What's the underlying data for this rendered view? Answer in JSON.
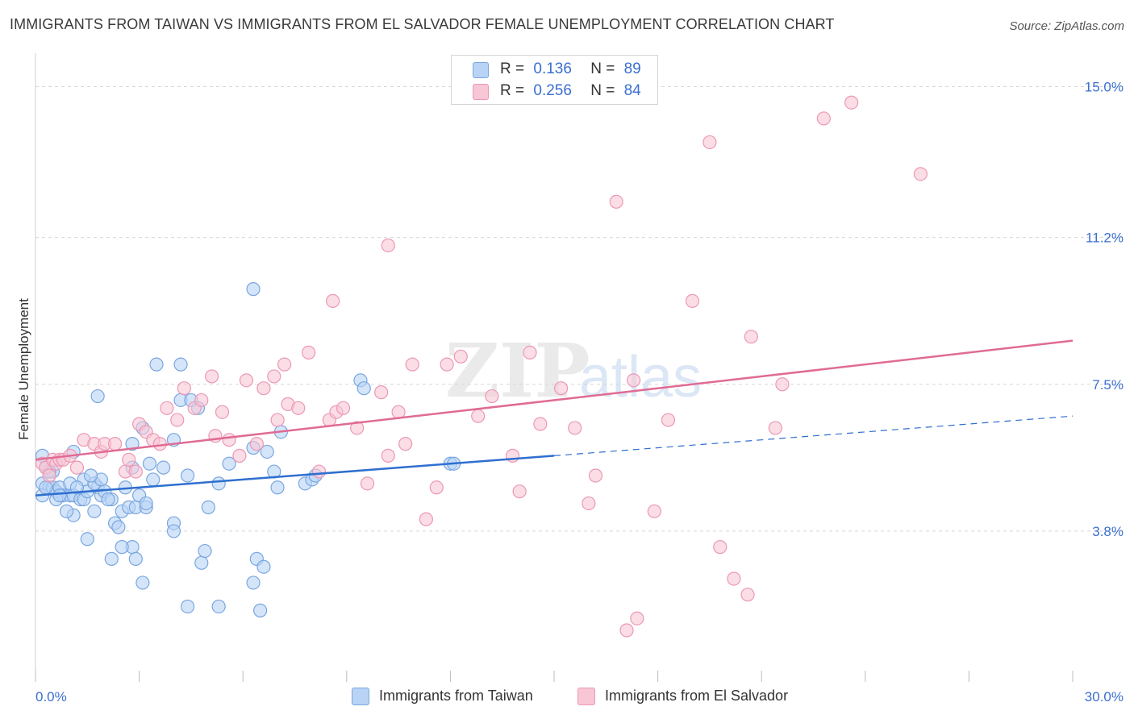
{
  "header": {
    "title": "IMMIGRANTS FROM TAIWAN VS IMMIGRANTS FROM EL SALVADOR FEMALE UNEMPLOYMENT CORRELATION CHART",
    "source": "Source: ZipAtlas.com"
  },
  "watermark": {
    "zip": "ZIP",
    "atlas": "atlas"
  },
  "legend": {
    "r_label": "R =",
    "n_label": "N =",
    "taiwan": {
      "r": "0.136",
      "n": "89"
    },
    "elsalvador": {
      "r": "0.256",
      "n": "84"
    }
  },
  "colors": {
    "taiwan_fill": "#b8d3f5",
    "taiwan_stroke": "#7aa6e0",
    "taiwan_line": "#2f6fcf",
    "elsalvador_fill": "#f8c6d5",
    "elsalvador_stroke": "#eb98b4",
    "elsalvador_line": "#e06b93",
    "grid": "#d8d8d8",
    "tick_text": "#3a6fd0"
  },
  "chart_data": {
    "type": "scatter",
    "title": "IMMIGRANTS FROM TAIWAN VS IMMIGRANTS FROM EL SALVADOR FEMALE UNEMPLOYMENT CORRELATION CHART",
    "xlabel": "",
    "ylabel": "Female Unemployment",
    "xlim": [
      0,
      30
    ],
    "ylim": [
      0,
      15.6
    ],
    "x_tick_labels": [
      "0.0%",
      "30.0%"
    ],
    "y_ticks": [
      3.8,
      7.5,
      11.2,
      15.0
    ],
    "y_tick_labels": [
      "3.8%",
      "7.5%",
      "11.2%",
      "15.0%"
    ],
    "grid": "horizontal dashed",
    "legend_position": "top-center",
    "series": [
      {
        "name": "Immigrants from Taiwan",
        "r": 0.136,
        "n": 89,
        "trend": {
          "x0": 0.0,
          "y0": 4.7,
          "x1": 15.0,
          "y1": 5.7,
          "x_extend": 30.0,
          "y_extend": 6.7
        },
        "points": [
          [
            0.2,
            5.7
          ],
          [
            0.3,
            5.4
          ],
          [
            0.2,
            5.0
          ],
          [
            0.4,
            4.9
          ],
          [
            0.5,
            4.9
          ],
          [
            0.6,
            4.8
          ],
          [
            0.2,
            4.7
          ],
          [
            0.3,
            4.9
          ],
          [
            0.7,
            4.9
          ],
          [
            0.8,
            4.7
          ],
          [
            1.0,
            4.7
          ],
          [
            1.1,
            4.7
          ],
          [
            0.6,
            4.6
          ],
          [
            0.7,
            4.7
          ],
          [
            1.3,
            4.6
          ],
          [
            1.4,
            4.6
          ],
          [
            1.5,
            4.8
          ],
          [
            1.8,
            4.9
          ],
          [
            1.9,
            4.7
          ],
          [
            1.7,
            4.3
          ],
          [
            1.1,
            4.2
          ],
          [
            0.9,
            4.3
          ],
          [
            1.0,
            5.0
          ],
          [
            1.4,
            5.1
          ],
          [
            1.7,
            5.0
          ],
          [
            1.9,
            5.1
          ],
          [
            2.0,
            4.8
          ],
          [
            2.2,
            4.6
          ],
          [
            2.5,
            4.3
          ],
          [
            2.3,
            4.0
          ],
          [
            2.4,
            3.9
          ],
          [
            2.7,
            4.4
          ],
          [
            2.9,
            4.4
          ],
          [
            2.6,
            4.9
          ],
          [
            3.0,
            4.7
          ],
          [
            3.2,
            4.4
          ],
          [
            2.8,
            5.4
          ],
          [
            2.8,
            3.4
          ],
          [
            2.2,
            3.1
          ],
          [
            2.9,
            3.1
          ],
          [
            2.5,
            3.4
          ],
          [
            3.1,
            2.5
          ],
          [
            3.3,
            5.5
          ],
          [
            3.4,
            5.1
          ],
          [
            3.7,
            5.4
          ],
          [
            4.0,
            4.0
          ],
          [
            4.0,
            3.8
          ],
          [
            4.4,
            5.2
          ],
          [
            4.0,
            6.1
          ],
          [
            4.7,
            6.9
          ],
          [
            4.2,
            7.1
          ],
          [
            4.5,
            7.1
          ],
          [
            4.8,
            3.0
          ],
          [
            4.9,
            3.3
          ],
          [
            5.0,
            4.4
          ],
          [
            5.3,
            5.0
          ],
          [
            5.6,
            5.5
          ],
          [
            6.3,
            5.9
          ],
          [
            6.7,
            5.8
          ],
          [
            6.9,
            5.3
          ],
          [
            7.0,
            4.9
          ],
          [
            7.1,
            6.3
          ],
          [
            6.4,
            3.1
          ],
          [
            6.6,
            2.9
          ],
          [
            6.3,
            2.5
          ],
          [
            6.5,
            1.8
          ],
          [
            5.3,
            1.9
          ],
          [
            4.4,
            1.9
          ],
          [
            3.1,
            6.4
          ],
          [
            2.8,
            6.0
          ],
          [
            1.8,
            7.2
          ],
          [
            3.5,
            8.0
          ],
          [
            4.2,
            8.0
          ],
          [
            6.3,
            9.9
          ],
          [
            7.8,
            5.0
          ],
          [
            8.0,
            5.1
          ],
          [
            8.1,
            5.2
          ],
          [
            9.4,
            7.6
          ],
          [
            9.5,
            7.4
          ],
          [
            12.0,
            5.5
          ],
          [
            12.1,
            5.5
          ],
          [
            1.1,
            5.8
          ],
          [
            0.5,
            5.3
          ],
          [
            1.5,
            3.6
          ],
          [
            0.4,
            5.3
          ],
          [
            2.1,
            4.6
          ],
          [
            1.6,
            5.2
          ],
          [
            3.2,
            4.5
          ],
          [
            1.2,
            4.9
          ]
        ]
      },
      {
        "name": "Immigrants from El Salvador",
        "r": 0.256,
        "n": 84,
        "trend": {
          "x0": 0.0,
          "y0": 5.6,
          "x1": 30.0,
          "y1": 8.6
        },
        "points": [
          [
            0.2,
            5.5
          ],
          [
            0.3,
            5.4
          ],
          [
            0.4,
            5.2
          ],
          [
            0.5,
            5.6
          ],
          [
            0.6,
            5.5
          ],
          [
            0.7,
            5.6
          ],
          [
            0.8,
            5.6
          ],
          [
            1.0,
            5.7
          ],
          [
            1.2,
            5.4
          ],
          [
            1.4,
            6.1
          ],
          [
            1.7,
            6.0
          ],
          [
            1.9,
            5.8
          ],
          [
            2.0,
            6.0
          ],
          [
            2.3,
            6.0
          ],
          [
            2.6,
            5.3
          ],
          [
            2.7,
            5.6
          ],
          [
            2.9,
            5.3
          ],
          [
            3.0,
            6.5
          ],
          [
            3.2,
            6.3
          ],
          [
            3.4,
            6.1
          ],
          [
            3.6,
            6.0
          ],
          [
            3.8,
            6.9
          ],
          [
            4.1,
            6.6
          ],
          [
            4.3,
            7.4
          ],
          [
            4.6,
            6.9
          ],
          [
            4.8,
            7.1
          ],
          [
            5.1,
            7.7
          ],
          [
            5.2,
            6.2
          ],
          [
            5.4,
            6.8
          ],
          [
            5.6,
            6.1
          ],
          [
            5.9,
            5.7
          ],
          [
            6.1,
            7.6
          ],
          [
            6.4,
            6.0
          ],
          [
            6.6,
            7.4
          ],
          [
            6.9,
            7.7
          ],
          [
            7.0,
            6.6
          ],
          [
            7.2,
            8.0
          ],
          [
            7.3,
            7.0
          ],
          [
            7.6,
            6.9
          ],
          [
            7.9,
            8.3
          ],
          [
            8.2,
            5.3
          ],
          [
            8.5,
            6.6
          ],
          [
            8.7,
            6.8
          ],
          [
            8.9,
            6.9
          ],
          [
            9.3,
            6.4
          ],
          [
            9.6,
            5.0
          ],
          [
            10.0,
            7.3
          ],
          [
            10.2,
            5.7
          ],
          [
            10.5,
            6.8
          ],
          [
            10.7,
            6.0
          ],
          [
            10.9,
            8.0
          ],
          [
            11.3,
            4.1
          ],
          [
            11.6,
            4.9
          ],
          [
            11.9,
            8.0
          ],
          [
            12.3,
            8.2
          ],
          [
            12.8,
            6.7
          ],
          [
            13.2,
            7.2
          ],
          [
            13.8,
            5.7
          ],
          [
            14.0,
            4.8
          ],
          [
            14.3,
            8.3
          ],
          [
            14.6,
            6.5
          ],
          [
            15.2,
            7.4
          ],
          [
            15.6,
            6.4
          ],
          [
            16.0,
            4.5
          ],
          [
            16.2,
            5.2
          ],
          [
            16.8,
            12.1
          ],
          [
            17.1,
            1.3
          ],
          [
            17.3,
            7.6
          ],
          [
            17.9,
            4.3
          ],
          [
            18.3,
            6.6
          ],
          [
            19.0,
            9.6
          ],
          [
            19.5,
            13.6
          ],
          [
            19.8,
            3.4
          ],
          [
            20.2,
            2.6
          ],
          [
            20.6,
            2.2
          ],
          [
            20.7,
            8.7
          ],
          [
            21.4,
            6.4
          ],
          [
            21.6,
            7.5
          ],
          [
            22.8,
            14.2
          ],
          [
            23.6,
            14.6
          ],
          [
            25.6,
            12.8
          ],
          [
            10.2,
            11.0
          ],
          [
            8.6,
            9.6
          ],
          [
            17.4,
            1.6
          ]
        ]
      }
    ]
  },
  "bottom_legend": {
    "taiwan_label": "Immigrants from Taiwan",
    "elsalvador_label": "Immigrants from El Salvador"
  }
}
